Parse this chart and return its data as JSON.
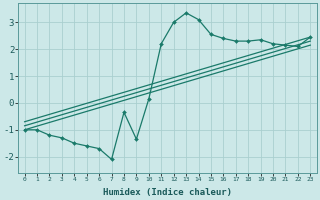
{
  "xlabel": "Humidex (Indice chaleur)",
  "bg_color": "#cce8e8",
  "grid_color": "#aacfcf",
  "line_color": "#1a7a6a",
  "curve_x": [
    0,
    1,
    2,
    3,
    4,
    5,
    6,
    7,
    8,
    9,
    10,
    11,
    12,
    13,
    14,
    15,
    16,
    17,
    18,
    19,
    20,
    21,
    22,
    23
  ],
  "curve_y": [
    -1.0,
    -1.0,
    -1.2,
    -1.3,
    -1.5,
    -1.6,
    -1.7,
    -2.1,
    -0.35,
    -1.35,
    0.15,
    2.2,
    3.0,
    3.35,
    3.1,
    2.55,
    2.4,
    2.3,
    2.3,
    2.35,
    2.2,
    2.15,
    2.1,
    2.45
  ],
  "line1_x": [
    0,
    23
  ],
  "line1_y": [
    -1.0,
    2.15
  ],
  "line2_x": [
    0,
    23
  ],
  "line2_y": [
    -0.85,
    2.3
  ],
  "line3_x": [
    0,
    23
  ],
  "line3_y": [
    -0.7,
    2.45
  ],
  "xlim": [
    -0.5,
    23.5
  ],
  "ylim": [
    -2.6,
    3.7
  ],
  "xticks": [
    0,
    1,
    2,
    3,
    4,
    5,
    6,
    7,
    8,
    9,
    10,
    11,
    12,
    13,
    14,
    15,
    16,
    17,
    18,
    19,
    20,
    21,
    22,
    23
  ],
  "yticks": [
    -2,
    -1,
    0,
    1,
    2,
    3
  ]
}
